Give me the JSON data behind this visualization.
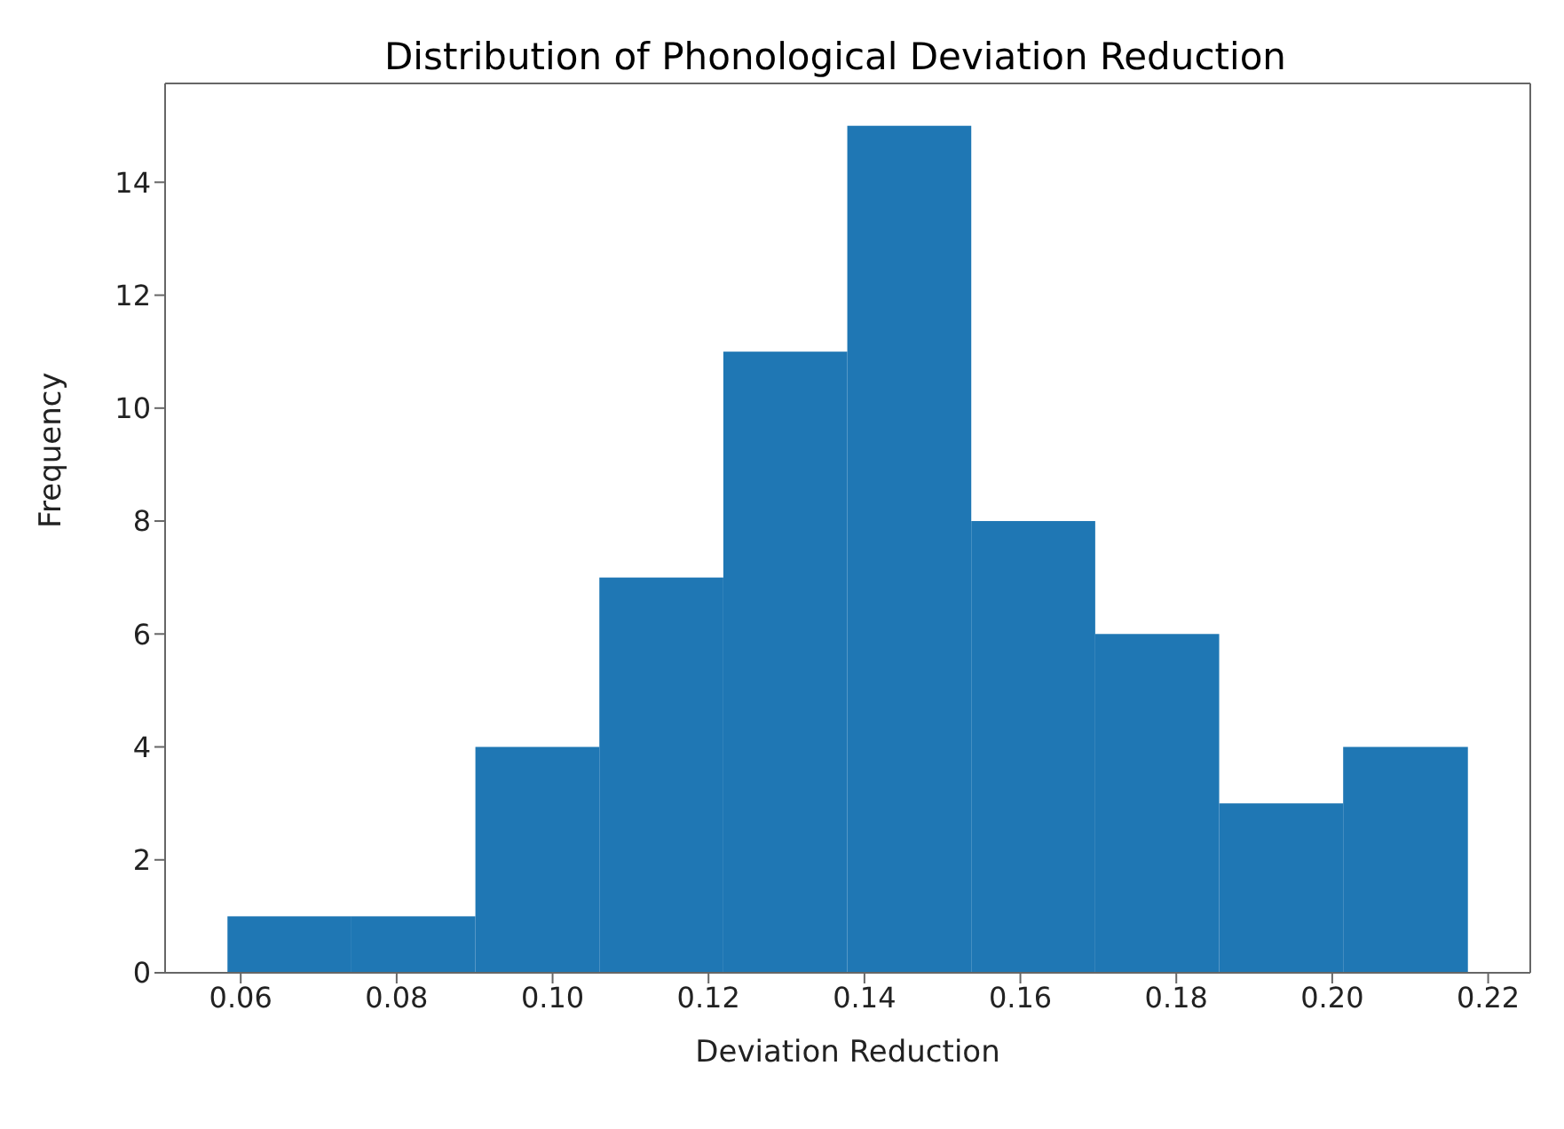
{
  "chart_data": {
    "type": "histogram",
    "title": "Distribution of Phonological Deviation Reduction",
    "xlabel": "Deviation Reduction",
    "ylabel": "Frequency",
    "bins": [
      0.0583,
      0.0742,
      0.0901,
      0.106,
      0.1219,
      0.1378,
      0.1537,
      0.1696,
      0.1855,
      0.2014,
      0.2174
    ],
    "values": [
      1,
      1,
      4,
      7,
      11,
      15,
      8,
      6,
      3,
      4
    ],
    "color": "#1f77b4",
    "xlim": [
      0.0503,
      0.2254
    ],
    "xticks": [
      0.06,
      0.08,
      {
        "value": 0.1,
        "label": "0.10"
      },
      0.12,
      0.14,
      0.16,
      0.18,
      {
        "value": 0.2,
        "label": "0.20"
      },
      0.22
    ],
    "ylim": [
      0,
      15.75
    ],
    "yticks": [
      0,
      2,
      4,
      6,
      8,
      10,
      12,
      14
    ],
    "grid": false,
    "legend": false
  }
}
